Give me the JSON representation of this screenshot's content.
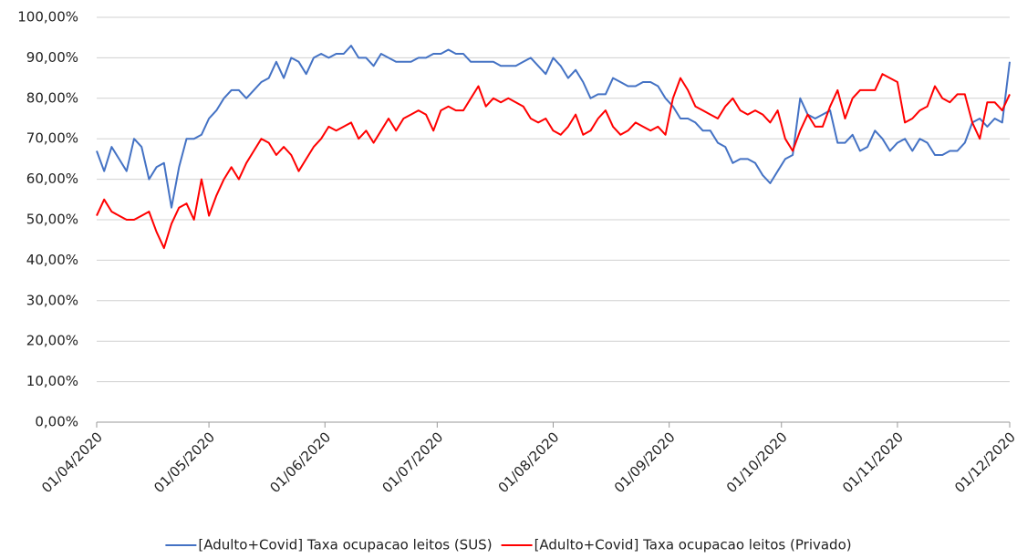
{
  "chart_data": {
    "type": "line",
    "x": [
      "01/04/2020",
      "03/04/2020",
      "05/04/2020",
      "07/04/2020",
      "09/04/2020",
      "11/04/2020",
      "13/04/2020",
      "15/04/2020",
      "17/04/2020",
      "19/04/2020",
      "21/04/2020",
      "23/04/2020",
      "25/04/2020",
      "27/04/2020",
      "29/04/2020",
      "01/05/2020",
      "03/05/2020",
      "05/05/2020",
      "07/05/2020",
      "09/05/2020",
      "11/05/2020",
      "13/05/2020",
      "15/05/2020",
      "17/05/2020",
      "19/05/2020",
      "21/05/2020",
      "23/05/2020",
      "25/05/2020",
      "27/05/2020",
      "29/05/2020",
      "31/05/2020",
      "02/06/2020",
      "04/06/2020",
      "06/06/2020",
      "08/06/2020",
      "10/06/2020",
      "12/06/2020",
      "14/06/2020",
      "16/06/2020",
      "18/06/2020",
      "20/06/2020",
      "22/06/2020",
      "24/06/2020",
      "26/06/2020",
      "28/06/2020",
      "30/06/2020",
      "02/07/2020",
      "04/07/2020",
      "06/07/2020",
      "08/07/2020",
      "10/07/2020",
      "12/07/2020",
      "14/07/2020",
      "16/07/2020",
      "18/07/2020",
      "20/07/2020",
      "22/07/2020",
      "24/07/2020",
      "26/07/2020",
      "28/07/2020",
      "30/07/2020",
      "01/08/2020",
      "03/08/2020",
      "05/08/2020",
      "07/08/2020",
      "09/08/2020",
      "11/08/2020",
      "13/08/2020",
      "15/08/2020",
      "17/08/2020",
      "19/08/2020",
      "21/08/2020",
      "23/08/2020",
      "25/08/2020",
      "27/08/2020",
      "29/08/2020",
      "31/08/2020",
      "02/09/2020",
      "04/09/2020",
      "06/09/2020",
      "08/09/2020",
      "10/09/2020",
      "12/09/2020",
      "14/09/2020",
      "16/09/2020",
      "18/09/2020",
      "20/09/2020",
      "22/09/2020",
      "24/09/2020",
      "26/09/2020",
      "28/09/2020",
      "30/09/2020",
      "02/10/2020",
      "04/10/2020",
      "06/10/2020",
      "08/10/2020",
      "10/10/2020",
      "12/10/2020",
      "14/10/2020",
      "16/10/2020",
      "18/10/2020",
      "20/10/2020",
      "22/10/2020",
      "24/10/2020",
      "26/10/2020",
      "28/10/2020",
      "30/10/2020",
      "01/11/2020",
      "03/11/2020",
      "05/11/2020",
      "07/11/2020",
      "09/11/2020",
      "11/11/2020",
      "13/11/2020",
      "15/11/2020",
      "17/11/2020",
      "19/11/2020",
      "21/11/2020",
      "23/11/2020",
      "25/11/2020",
      "27/11/2020",
      "29/11/2020",
      "01/12/2020"
    ],
    "series": [
      {
        "name": "[Adulto+Covid] Taxa ocupacao leitos (SUS)",
        "color": "#4472c4",
        "values": [
          67,
          62,
          68,
          65,
          62,
          70,
          68,
          60,
          63,
          64,
          53,
          63,
          70,
          70,
          71,
          75,
          77,
          80,
          82,
          82,
          80,
          82,
          84,
          85,
          89,
          85,
          90,
          89,
          86,
          90,
          91,
          90,
          91,
          91,
          93,
          90,
          90,
          88,
          91,
          90,
          89,
          89,
          89,
          90,
          90,
          91,
          91,
          92,
          91,
          91,
          89,
          89,
          89,
          89,
          88,
          88,
          88,
          89,
          90,
          88,
          86,
          90,
          88,
          85,
          87,
          84,
          80,
          81,
          81,
          85,
          84,
          83,
          83,
          84,
          84,
          83,
          80,
          78,
          75,
          75,
          74,
          72,
          72,
          69,
          68,
          64,
          65,
          65,
          64,
          61,
          59,
          62,
          65,
          66,
          80,
          76,
          75,
          76,
          77,
          69,
          69,
          71,
          67,
          68,
          72,
          70,
          67,
          69,
          70,
          67,
          70,
          69,
          66,
          66,
          67,
          67,
          69,
          74,
          75,
          73,
          75,
          74,
          89
        ]
      },
      {
        "name": "[Adulto+Covid] Taxa ocupacao leitos (Privado)",
        "color": "#ff0000",
        "values": [
          51,
          55,
          52,
          51,
          50,
          50,
          51,
          52,
          47,
          43,
          49,
          53,
          54,
          50,
          60,
          51,
          56,
          60,
          63,
          60,
          64,
          67,
          70,
          69,
          66,
          68,
          66,
          62,
          65,
          68,
          70,
          73,
          72,
          73,
          74,
          70,
          72,
          69,
          72,
          75,
          72,
          75,
          76,
          77,
          76,
          72,
          77,
          78,
          77,
          77,
          80,
          83,
          78,
          80,
          79,
          80,
          79,
          78,
          75,
          74,
          75,
          72,
          71,
          73,
          76,
          71,
          72,
          75,
          77,
          73,
          71,
          72,
          74,
          73,
          72,
          73,
          71,
          80,
          85,
          82,
          78,
          77,
          76,
          75,
          78,
          80,
          77,
          76,
          77,
          76,
          74,
          77,
          70,
          67,
          72,
          76,
          73,
          73,
          78,
          82,
          75,
          80,
          82,
          82,
          82,
          86,
          85,
          84,
          74,
          75,
          77,
          78,
          83,
          80,
          79,
          81,
          81,
          74,
          70,
          79,
          79,
          77,
          81
        ]
      }
    ],
    "xlim": [
      "01/04/2020",
      "01/12/2020"
    ],
    "xticks": [
      "01/04/2020",
      "01/05/2020",
      "01/06/2020",
      "01/07/2020",
      "01/08/2020",
      "01/09/2020",
      "01/10/2020",
      "01/11/2020",
      "01/12/2020"
    ],
    "ylim": [
      0,
      100
    ],
    "yticks": [
      {
        "value": 0,
        "label": "0,00%"
      },
      {
        "value": 10,
        "label": "10,00%"
      },
      {
        "value": 20,
        "label": "20,00%"
      },
      {
        "value": 30,
        "label": "30,00%"
      },
      {
        "value": 40,
        "label": "40,00%"
      },
      {
        "value": 50,
        "label": "50,00%"
      },
      {
        "value": 60,
        "label": "60,00%"
      },
      {
        "value": 70,
        "label": "70,00%"
      },
      {
        "value": 80,
        "label": "80,00%"
      },
      {
        "value": 90,
        "label": "90,00%"
      },
      {
        "value": 100,
        "label": "100,00%"
      }
    ],
    "grid": true,
    "legend": "bottom"
  }
}
